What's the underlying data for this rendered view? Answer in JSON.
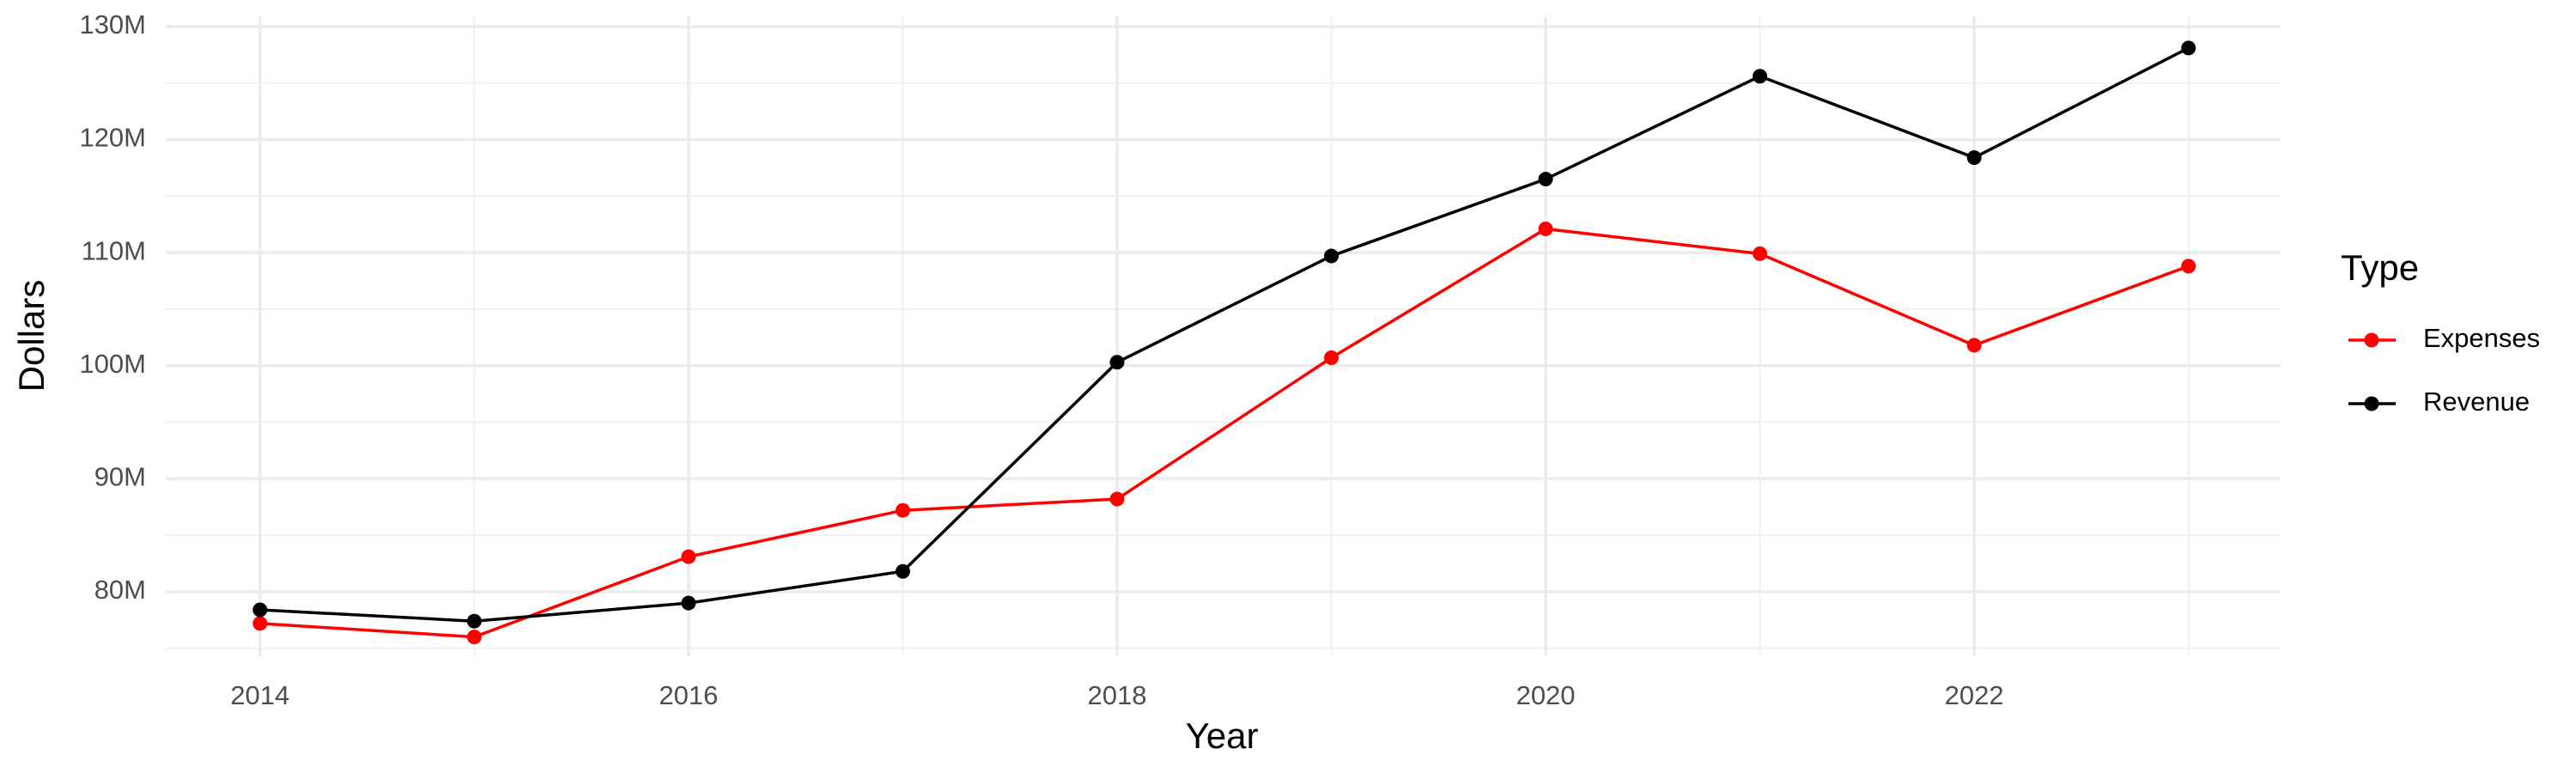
{
  "chart_data": {
    "type": "line",
    "x_label": "Year",
    "y_label": "Dollars",
    "legend_title": "Type",
    "x": [
      2014,
      2015,
      2016,
      2017,
      2018,
      2019,
      2020,
      2021,
      2022,
      2023
    ],
    "series": [
      {
        "name": "Expenses",
        "color": "#ff0000",
        "values": [
          77200000,
          76000000,
          83100000,
          87200000,
          88200000,
          100700000,
          112100000,
          109900000,
          101800000,
          108800000
        ]
      },
      {
        "name": "Revenue",
        "color": "#000000",
        "values": [
          78400000,
          77400000,
          79000000,
          81800000,
          100300000,
          109700000,
          116500000,
          125600000,
          118400000,
          128100000
        ]
      }
    ],
    "xlim": [
      2013.56,
      2023.43
    ],
    "xticks": [
      2014,
      2016,
      2018,
      2020,
      2022
    ],
    "ylim": [
      74300000,
      130900000
    ],
    "yticks": [
      {
        "value": 80000000,
        "label": "80M"
      },
      {
        "value": 90000000,
        "label": "90M"
      },
      {
        "value": 100000000,
        "label": "100M"
      },
      {
        "value": 110000000,
        "label": "110M"
      },
      {
        "value": 120000000,
        "label": "120M"
      },
      {
        "value": 130000000,
        "label": "130M"
      }
    ],
    "grid": true,
    "legend": "right"
  }
}
